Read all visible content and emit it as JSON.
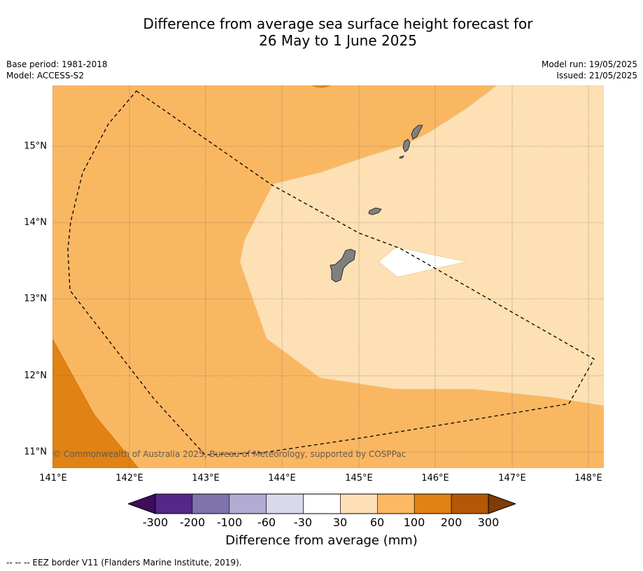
{
  "title": {
    "line1": "Difference from average sea surface height forecast for",
    "line2": "26 May to 1 June 2025"
  },
  "meta": {
    "base_period": "Base period: 1981-2018",
    "model": "Model: ACCESS-S2",
    "model_run": "Model run: 19/05/2025",
    "issued": "Issued: 21/05/2025"
  },
  "map": {
    "x_ticks": [
      "141°E",
      "142°E",
      "143°E",
      "144°E",
      "145°E",
      "146°E",
      "147°E",
      "148°E"
    ],
    "y_ticks": [
      "15°N",
      "14°N",
      "13°N",
      "12°N",
      "11°N"
    ],
    "credit": "© Commonwealth of Australia 2025, Bureau of Meteorology, supported by COSPPac",
    "land_color": "#808080",
    "eez_border": "dashed"
  },
  "colorbar": {
    "ticks": [
      "-300",
      "-200",
      "-100",
      "-60",
      "-30",
      "30",
      "60",
      "100",
      "200",
      "300"
    ],
    "colors": [
      "#3d0d5e",
      "#542788",
      "#8073ac",
      "#b2abd2",
      "#d8daeb",
      "#ffffff",
      "#fee0b6",
      "#fdb863",
      "#e08214",
      "#b35806",
      "#7f3b08"
    ],
    "label": "Difference from average (mm)"
  },
  "legend": {
    "text": "--  --  -- EEZ border V11 (Flanders Marine Institute, 2019)."
  }
}
